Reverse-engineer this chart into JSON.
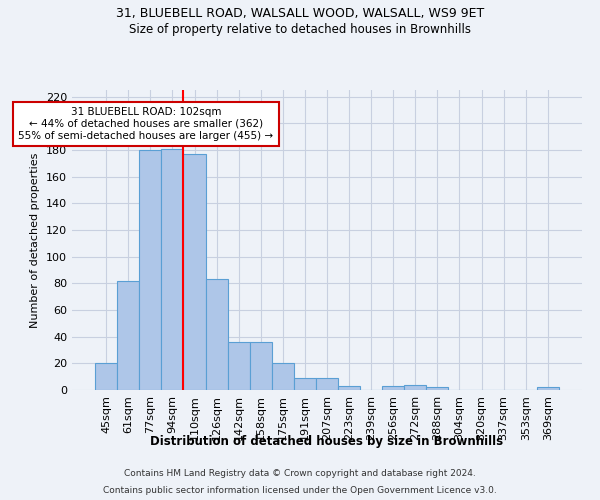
{
  "title1": "31, BLUEBELL ROAD, WALSALL WOOD, WALSALL, WS9 9ET",
  "title2": "Size of property relative to detached houses in Brownhills",
  "xlabel": "Distribution of detached houses by size in Brownhills",
  "ylabel": "Number of detached properties",
  "categories": [
    "45sqm",
    "61sqm",
    "77sqm",
    "94sqm",
    "110sqm",
    "126sqm",
    "142sqm",
    "158sqm",
    "175sqm",
    "191sqm",
    "207sqm",
    "223sqm",
    "239sqm",
    "256sqm",
    "272sqm",
    "288sqm",
    "304sqm",
    "320sqm",
    "337sqm",
    "353sqm",
    "369sqm"
  ],
  "values": [
    20,
    82,
    180,
    181,
    177,
    83,
    36,
    36,
    20,
    9,
    9,
    3,
    0,
    3,
    4,
    2,
    0,
    0,
    0,
    0,
    2
  ],
  "bar_color": "#aec6e8",
  "bar_edge_color": "#5a9fd4",
  "red_line_x": 3.5,
  "annotation_text": "31 BLUEBELL ROAD: 102sqm\n← 44% of detached houses are smaller (362)\n55% of semi-detached houses are larger (455) →",
  "annotation_box_color": "#ffffff",
  "annotation_box_edge": "#cc0000",
  "footer1": "Contains HM Land Registry data © Crown copyright and database right 2024.",
  "footer2": "Contains public sector information licensed under the Open Government Licence v3.0.",
  "ylim": [
    0,
    225
  ],
  "yticks": [
    0,
    20,
    40,
    60,
    80,
    100,
    120,
    140,
    160,
    180,
    200,
    220
  ],
  "bg_color": "#eef2f8",
  "grid_color": "#c8d0e0"
}
